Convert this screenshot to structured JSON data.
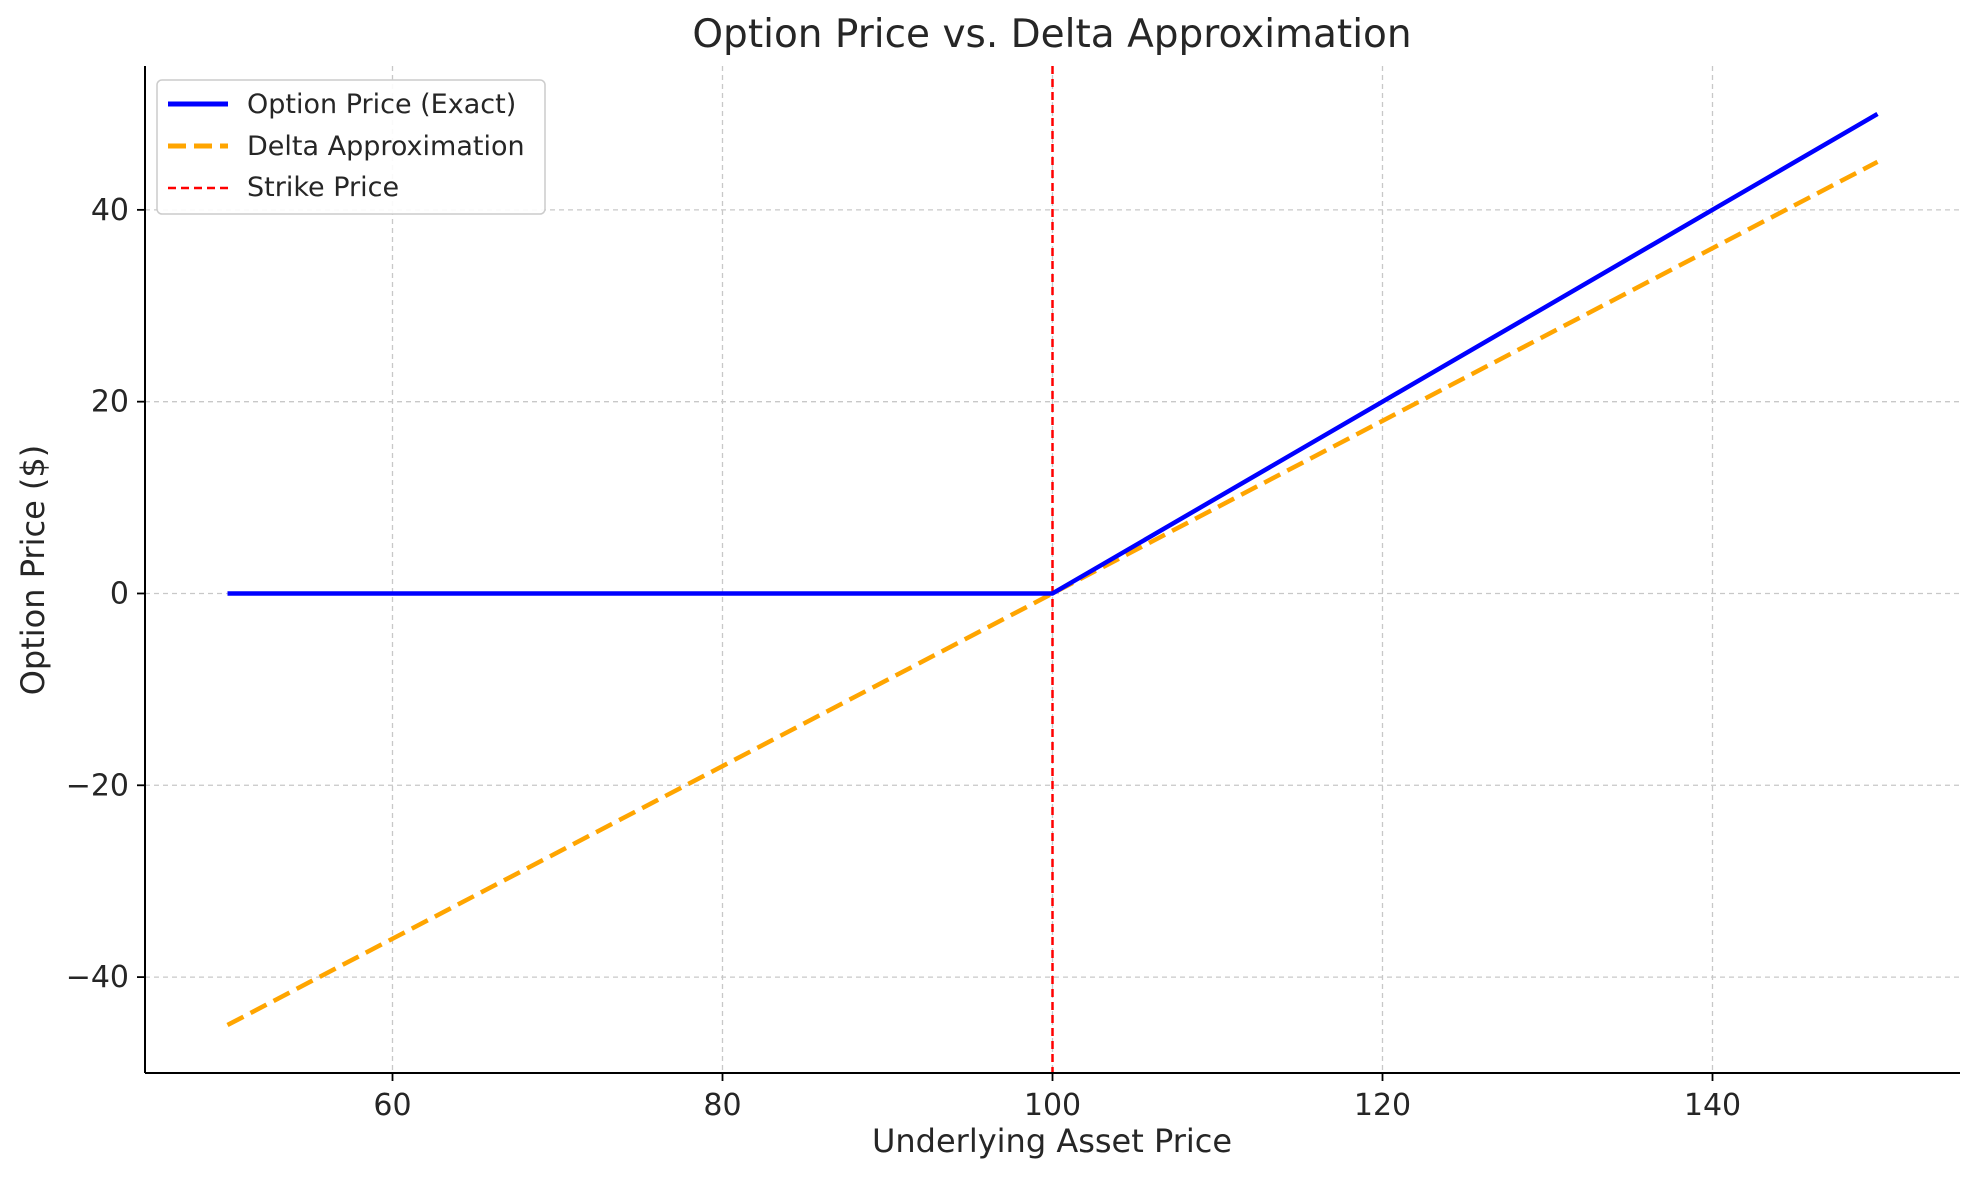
{
  "chart_data": {
    "type": "line",
    "title": "Option Price vs. Delta Approximation",
    "xlabel": "Underlying Asset Price",
    "ylabel": "Option Price ($)",
    "xlim": [
      45,
      155
    ],
    "ylim": [
      -50,
      55
    ],
    "x_ticks": [
      60,
      80,
      100,
      120,
      140
    ],
    "y_ticks": [
      -40,
      -20,
      0,
      20,
      40
    ],
    "x_tick_labels": [
      "60",
      "80",
      "100",
      "120",
      "140"
    ],
    "y_tick_labels": [
      "−40",
      "−20",
      "0",
      "20",
      "40"
    ],
    "grid": true,
    "legend_position": "top-left",
    "series": [
      {
        "name": "Option Price (Exact)",
        "style": "solid",
        "color": "#0000ff",
        "x": [
          50,
          60,
          70,
          80,
          90,
          100,
          110,
          120,
          130,
          140,
          150
        ],
        "y": [
          0,
          0,
          0,
          0,
          0,
          0,
          10,
          20,
          30,
          40,
          50
        ]
      },
      {
        "name": "Delta Approximation",
        "style": "dashed",
        "color": "#ffa500",
        "x": [
          50,
          150
        ],
        "y": [
          -45,
          45
        ]
      }
    ],
    "vlines": [
      {
        "name": "Strike Price",
        "x": 100,
        "style": "dashed",
        "color": "#ff0000"
      }
    ]
  }
}
